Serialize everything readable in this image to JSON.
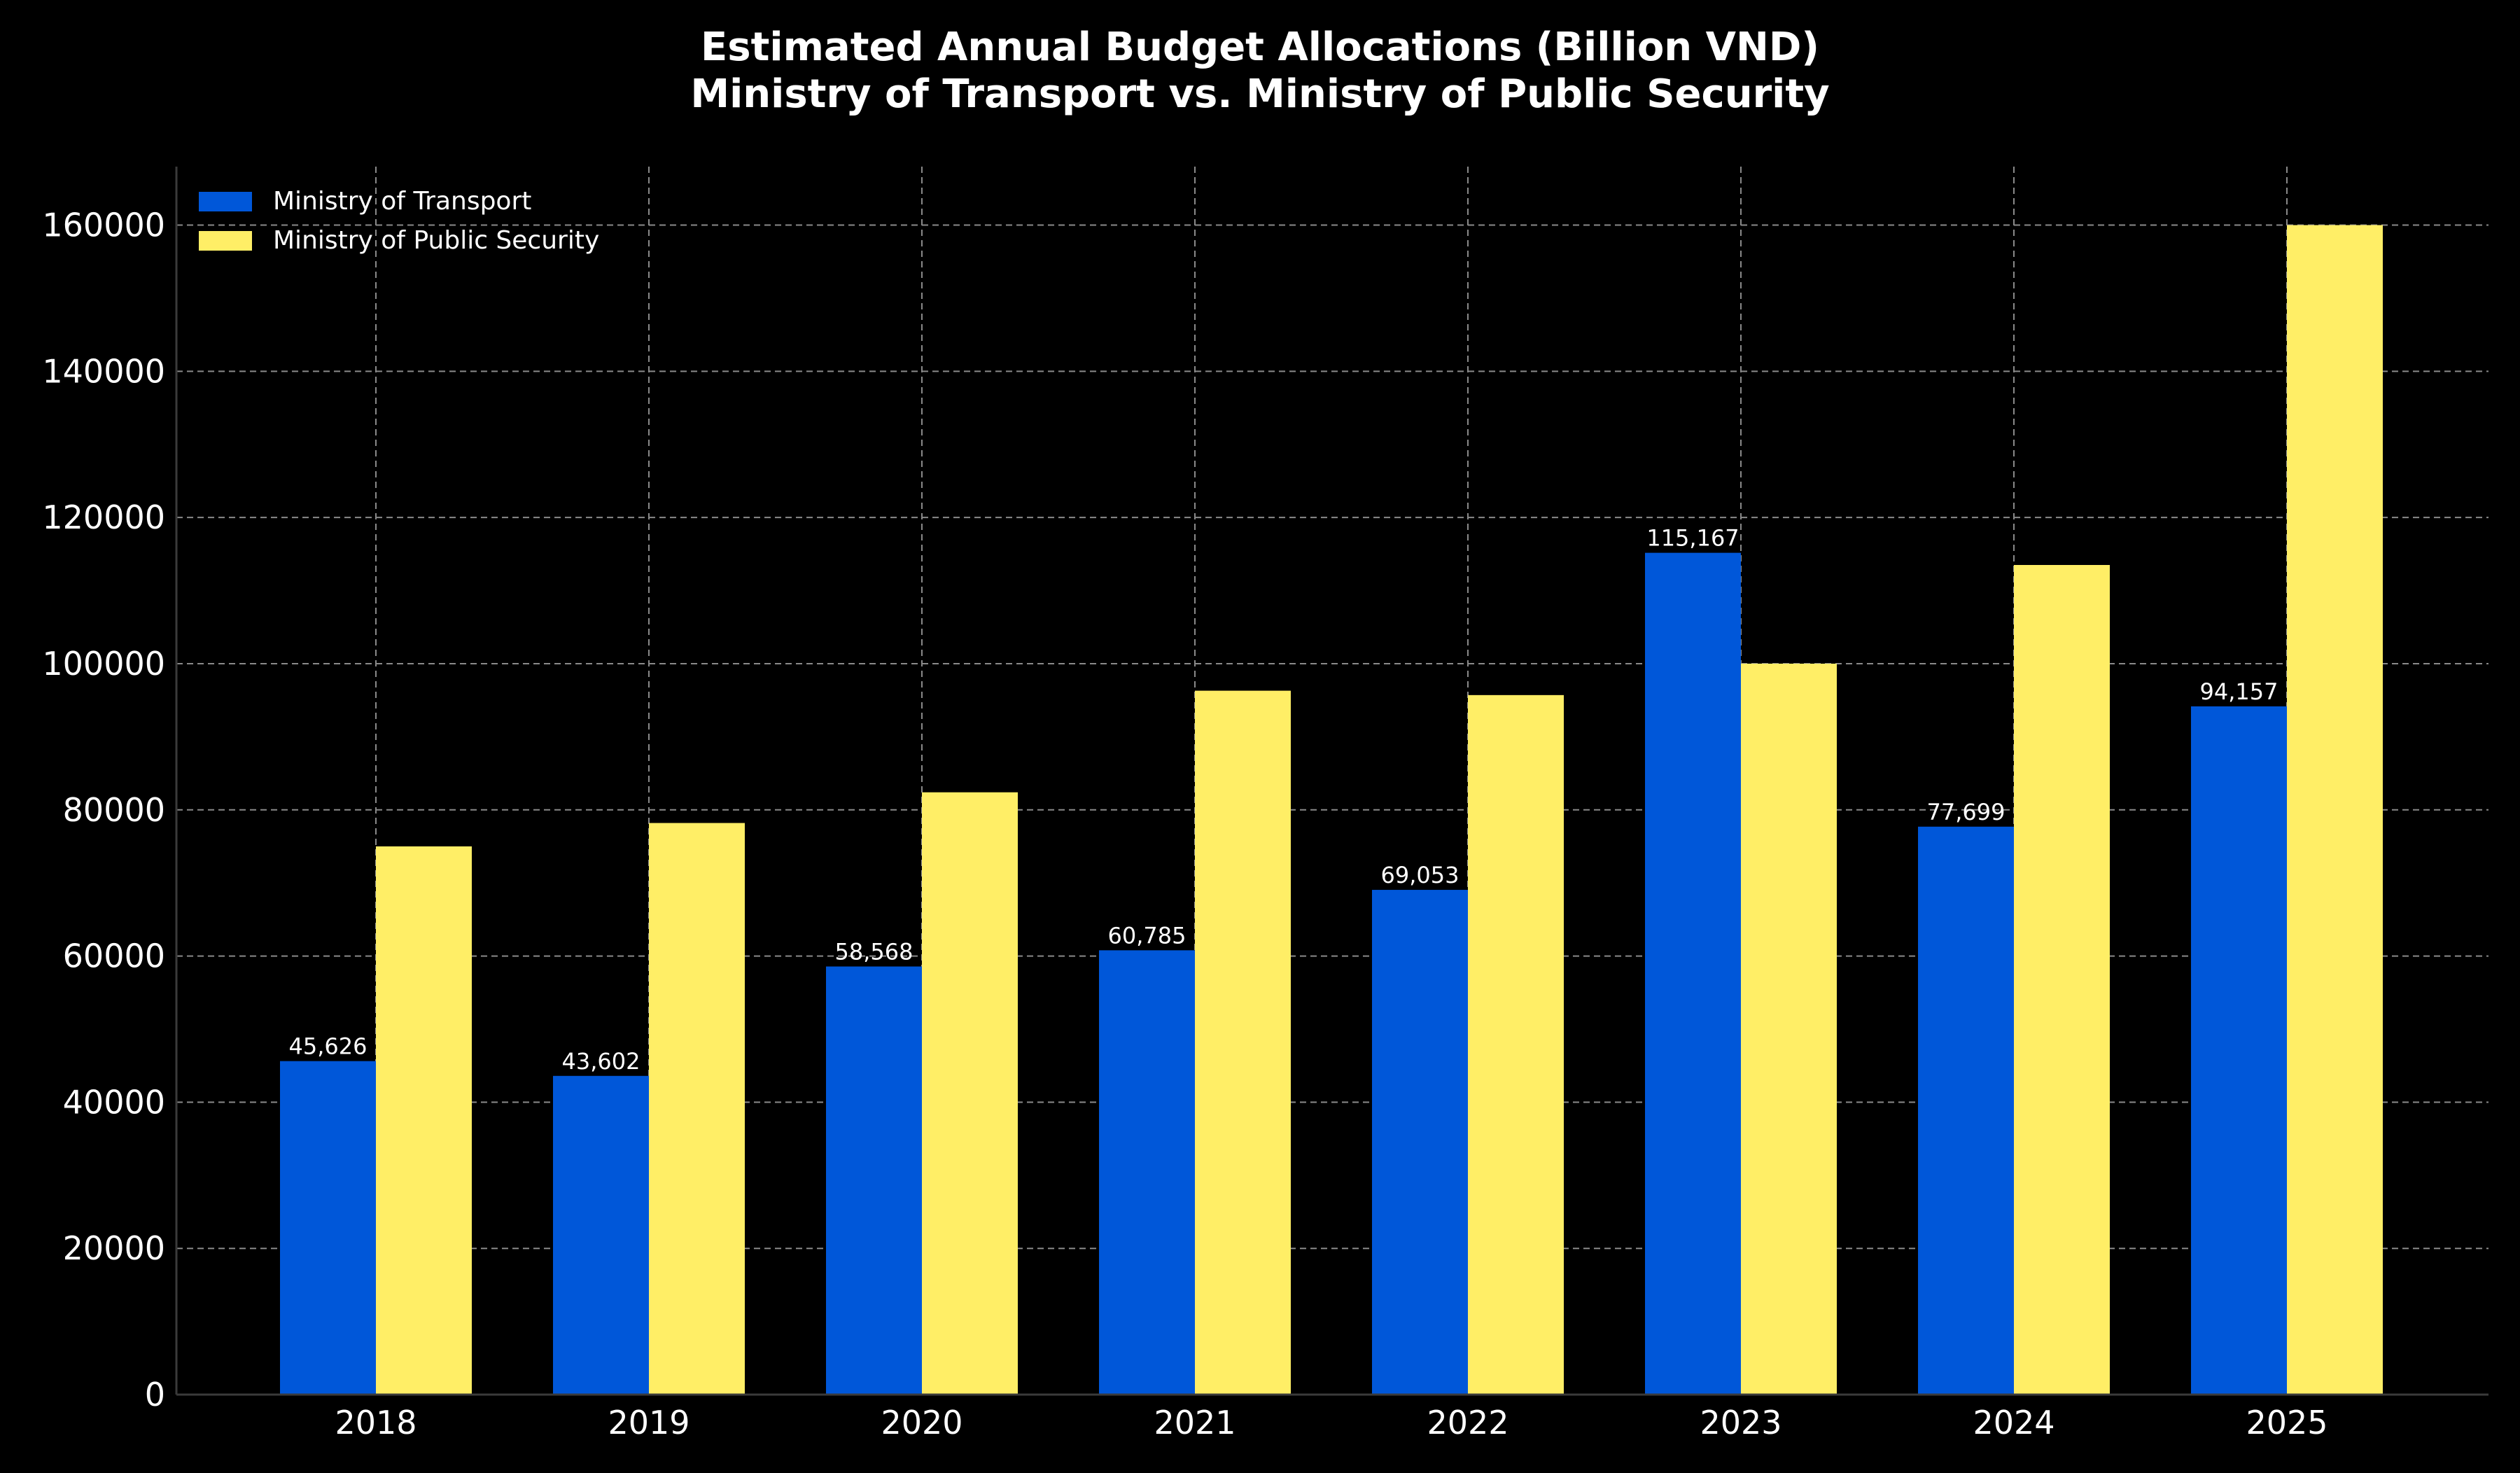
{
  "chart_data": {
    "type": "bar",
    "title": [
      "Estimated Annual Budget Allocations (Billion VND)",
      "Ministry of Transport vs. Ministry of Public Security"
    ],
    "xlabel": "",
    "ylabel": "",
    "categories": [
      "2018",
      "2019",
      "2020",
      "2021",
      "2022",
      "2023",
      "2024",
      "2025"
    ],
    "series": [
      {
        "name": "Ministry of Transport",
        "color": "#0057D9",
        "values": [
          45626,
          43602,
          58568,
          60785,
          69053,
          115167,
          77699,
          94157
        ],
        "labels": [
          "45,626",
          "43,602",
          "58,568",
          "60,785",
          "69,053",
          "115,167",
          "77,699",
          "94,157"
        ]
      },
      {
        "name": "Ministry of Public Security",
        "color": "#FFEE66",
        "values": [
          75000,
          78200,
          82400,
          96300,
          95700,
          100000,
          113500,
          160000
        ]
      }
    ],
    "ylim": [
      0,
      168000
    ],
    "yticks": [
      "0",
      "20000",
      "40000",
      "60000",
      "80000",
      "100000",
      "120000",
      "140000",
      "160000"
    ],
    "grid": true,
    "legend_position": "top-left"
  }
}
